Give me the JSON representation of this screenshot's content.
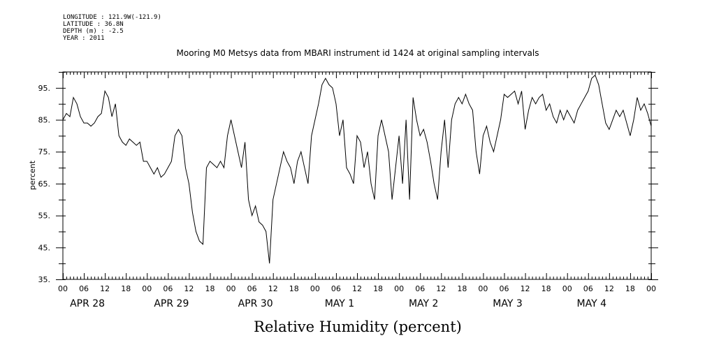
{
  "metadata": {
    "longitude": "LONGITUDE : 121.9W(-121.9)",
    "latitude": "LATITUDE : 36.8N",
    "depth": "DEPTH (m) : -2.5",
    "year": "YEAR : 2011"
  },
  "chart_data": {
    "type": "line",
    "title": "Mooring M0 Metsys data from MBARI instrument id 1424 at original sampling intervals",
    "xlabel": "Relative Humidity (percent)",
    "ylabel": "percent",
    "xlim": [
      0,
      168
    ],
    "x_units": "hours since APR 28 00",
    "ylim": [
      35,
      100
    ],
    "y_ticks": [
      35,
      45,
      55,
      65,
      75,
      85,
      95
    ],
    "x_tick_labels": [
      "00",
      "06",
      "12",
      "18",
      "00",
      "06",
      "12",
      "18",
      "00",
      "06",
      "12",
      "18",
      "00",
      "06",
      "12",
      "18",
      "00",
      "06",
      "12",
      "18",
      "00",
      "06",
      "12",
      "18",
      "00",
      "06",
      "12",
      "18",
      "00"
    ],
    "day_labels": [
      "APR 28",
      "APR 29",
      "APR 30",
      "MAY  1",
      "MAY  2",
      "MAY  3",
      "MAY  4"
    ],
    "grid": false,
    "series": [
      {
        "x": [
          0,
          1,
          2,
          3,
          4,
          5,
          6,
          7,
          8,
          9,
          10,
          11,
          12,
          13,
          14,
          15,
          16,
          17,
          18,
          19,
          20,
          21,
          22,
          23,
          24,
          25,
          26,
          27,
          28,
          29,
          30,
          31,
          32,
          33,
          34,
          35,
          36,
          37,
          38,
          39,
          40,
          41,
          42,
          43,
          44,
          45,
          46,
          47,
          48,
          49,
          50,
          51,
          52,
          53,
          54,
          55,
          56,
          57,
          58,
          59,
          60,
          61,
          62,
          63,
          64,
          65,
          66,
          67,
          68,
          69,
          70,
          71,
          72,
          73,
          74,
          75,
          76,
          77,
          78,
          79,
          80,
          81,
          82,
          83,
          84,
          85,
          86,
          87,
          88,
          89,
          90,
          91,
          92,
          93,
          94,
          95,
          96,
          97,
          98,
          99,
          100,
          101,
          102,
          103,
          104,
          105,
          106,
          107,
          108,
          109,
          110,
          111,
          112,
          113,
          114,
          115,
          116,
          117,
          118,
          119,
          120,
          121,
          122,
          123,
          124,
          125,
          126,
          127,
          128,
          129,
          130,
          131,
          132,
          133,
          134,
          135,
          136,
          137,
          138,
          139,
          140,
          141,
          142,
          143,
          144,
          145,
          146,
          147,
          148,
          149,
          150,
          151,
          152,
          153,
          154,
          155,
          156,
          157,
          158,
          159,
          160,
          161,
          162,
          163,
          164,
          165,
          166,
          167,
          168
        ],
        "y": [
          85,
          87,
          86,
          92,
          90,
          86,
          84,
          84,
          83,
          84,
          86,
          87,
          94,
          92,
          86,
          90,
          80,
          78,
          77,
          79,
          78,
          77,
          78,
          72,
          72,
          70,
          68,
          70,
          67,
          68,
          70,
          72,
          80,
          82,
          80,
          70,
          65,
          56,
          50,
          47,
          46,
          70,
          72,
          71,
          70,
          72,
          70,
          80,
          85,
          80,
          75,
          70,
          78,
          60,
          55,
          58,
          53,
          52,
          50,
          40,
          60,
          65,
          70,
          75,
          72,
          70,
          65,
          72,
          75,
          70,
          65,
          80,
          85,
          90,
          96,
          98,
          96,
          95,
          90,
          80,
          85,
          70,
          68,
          65,
          80,
          78,
          70,
          75,
          65,
          60,
          80,
          85,
          80,
          75,
          60,
          70,
          80,
          65,
          85,
          60,
          92,
          85,
          80,
          82,
          78,
          72,
          65,
          60,
          75,
          85,
          70,
          85,
          90,
          92,
          90,
          93,
          90,
          88,
          75,
          68,
          80,
          83,
          78,
          75,
          80,
          85,
          93,
          92,
          93,
          94,
          90,
          94,
          82,
          88,
          92,
          90,
          92,
          93,
          88,
          90,
          86,
          84,
          88,
          85,
          88,
          86,
          84,
          88,
          90,
          92,
          94,
          98,
          99,
          96,
          90,
          84,
          82,
          85,
          88,
          86,
          88,
          84,
          80,
          85,
          92,
          88,
          90,
          87,
          83
        ]
      }
    ]
  }
}
